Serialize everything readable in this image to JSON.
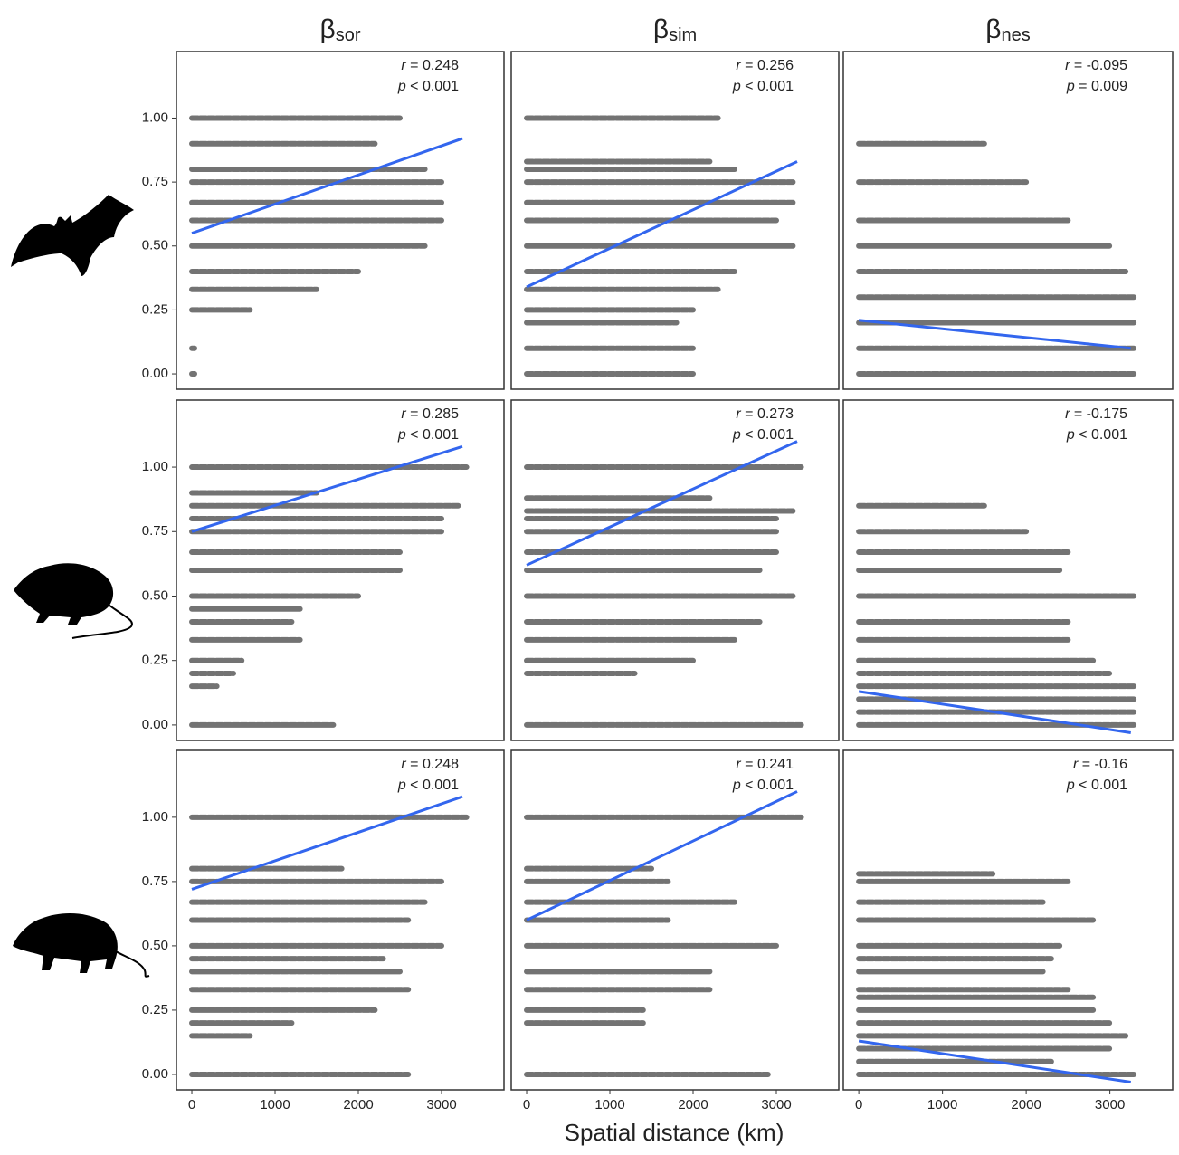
{
  "figure": {
    "column_titles": [
      {
        "symbol": "β",
        "sub": "sor"
      },
      {
        "symbol": "β",
        "sub": "sim"
      },
      {
        "symbol": "β",
        "sub": "nes"
      }
    ],
    "xlabel": "Spatial distance (km)"
  },
  "chart_data": [
    {
      "type": "scatter",
      "stat_r": "r = 0.248",
      "stat_p": "p < 0.001",
      "xlim": [
        -185,
        3750
      ],
      "ylim": [
        -0.06,
        1.26
      ],
      "yticks": [
        {
          "value": 0,
          "label": "0.00"
        },
        {
          "value": 0.25,
          "label": "0.25"
        },
        {
          "value": 0.5,
          "label": "0.50"
        },
        {
          "value": 0.75,
          "label": "0.75"
        },
        {
          "value": 1,
          "label": "1.00"
        }
      ],
      "levels": [
        1,
        0.9,
        0.8,
        0.75,
        0.67,
        0.6,
        0.5,
        0.4,
        0.33,
        0.25,
        0.1,
        0
      ],
      "level_xmax": [
        2500,
        2200,
        2800,
        3000,
        3000,
        3000,
        2800,
        2000,
        1500,
        700,
        0,
        0
      ],
      "fit_x": [
        0,
        3250
      ],
      "fit_y": [
        0.55,
        0.92
      ],
      "color": "#3366ee"
    },
    {
      "type": "scatter",
      "stat_r": "r = 0.256",
      "stat_p": "p < 0.001",
      "xlim": [
        -185,
        3750
      ],
      "ylim": [
        -0.06,
        1.26
      ],
      "levels": [
        1,
        0.83,
        0.8,
        0.75,
        0.67,
        0.6,
        0.5,
        0.4,
        0.33,
        0.25,
        0.2,
        0.1,
        0
      ],
      "level_xmax": [
        2300,
        2200,
        2500,
        3200,
        3200,
        3000,
        3200,
        2500,
        2300,
        2000,
        1800,
        2000,
        2000
      ],
      "fit_x": [
        0,
        3250
      ],
      "fit_y": [
        0.34,
        0.83
      ],
      "color": "#3366ee"
    },
    {
      "type": "scatter",
      "stat_r": "r = -0.095",
      "stat_p": "p = 0.009",
      "xlim": [
        -185,
        3750
      ],
      "ylim": [
        -0.06,
        1.26
      ],
      "levels": [
        0.9,
        0.75,
        0.6,
        0.5,
        0.4,
        0.3,
        0.2,
        0.1,
        0
      ],
      "level_xmax": [
        1500,
        2000,
        2500,
        3000,
        3200,
        3300,
        3300,
        3300,
        3300
      ],
      "fit_x": [
        0,
        3250
      ],
      "fit_y": [
        0.21,
        0.1
      ],
      "color": "#3366ee"
    },
    {
      "type": "scatter",
      "stat_r": "r = 0.285",
      "stat_p": "p < 0.001",
      "xlim": [
        -185,
        3750
      ],
      "ylim": [
        -0.06,
        1.26
      ],
      "yticks": [
        {
          "value": 0,
          "label": "0.00"
        },
        {
          "value": 0.25,
          "label": "0.25"
        },
        {
          "value": 0.5,
          "label": "0.50"
        },
        {
          "value": 0.75,
          "label": "0.75"
        },
        {
          "value": 1,
          "label": "1.00"
        }
      ],
      "levels": [
        1,
        0.9,
        0.85,
        0.8,
        0.75,
        0.67,
        0.6,
        0.5,
        0.45,
        0.4,
        0.33,
        0.25,
        0.2,
        0.15,
        0
      ],
      "level_xmax": [
        3300,
        1500,
        3200,
        3000,
        3000,
        2500,
        2500,
        2000,
        1300,
        1200,
        1300,
        600,
        500,
        300,
        1700
      ],
      "fit_x": [
        0,
        3250
      ],
      "fit_y": [
        0.75,
        1.08
      ],
      "color": "#3366ee"
    },
    {
      "type": "scatter",
      "stat_r": "r = 0.273",
      "stat_p": "p < 0.001",
      "xlim": [
        -185,
        3750
      ],
      "ylim": [
        -0.06,
        1.26
      ],
      "levels": [
        1,
        0.88,
        0.83,
        0.8,
        0.75,
        0.67,
        0.6,
        0.5,
        0.4,
        0.33,
        0.25,
        0.2,
        0
      ],
      "level_xmax": [
        3300,
        2200,
        3200,
        3000,
        3000,
        3000,
        2800,
        3200,
        2800,
        2500,
        2000,
        1300,
        3300
      ],
      "fit_x": [
        0,
        3250
      ],
      "fit_y": [
        0.62,
        1.1
      ],
      "color": "#3366ee"
    },
    {
      "type": "scatter",
      "stat_r": "r = -0.175",
      "stat_p": "p < 0.001",
      "xlim": [
        -185,
        3750
      ],
      "ylim": [
        -0.06,
        1.26
      ],
      "levels": [
        0.85,
        0.75,
        0.67,
        0.6,
        0.5,
        0.4,
        0.33,
        0.25,
        0.2,
        0.15,
        0.1,
        0.05,
        0
      ],
      "level_xmax": [
        1500,
        2000,
        2500,
        2400,
        3300,
        2500,
        2500,
        2800,
        3000,
        3300,
        3300,
        3300,
        3300
      ],
      "fit_x": [
        0,
        3250
      ],
      "fit_y": [
        0.13,
        -0.03
      ],
      "color": "#3366ee"
    },
    {
      "type": "scatter",
      "stat_r": "r = 0.248",
      "stat_p": "p < 0.001",
      "xlim": [
        -185,
        3750
      ],
      "ylim": [
        -0.06,
        1.26
      ],
      "yticks": [
        {
          "value": 0,
          "label": "0.00"
        },
        {
          "value": 0.25,
          "label": "0.25"
        },
        {
          "value": 0.5,
          "label": "0.50"
        },
        {
          "value": 0.75,
          "label": "0.75"
        },
        {
          "value": 1,
          "label": "1.00"
        }
      ],
      "xticks": [
        0,
        1000,
        2000,
        3000
      ],
      "levels": [
        1,
        0.8,
        0.75,
        0.67,
        0.6,
        0.5,
        0.45,
        0.4,
        0.33,
        0.25,
        0.2,
        0.15,
        0
      ],
      "level_xmax": [
        3300,
        1800,
        3000,
        2800,
        2600,
        3000,
        2300,
        2500,
        2600,
        2200,
        1200,
        700,
        2600
      ],
      "fit_x": [
        0,
        3250
      ],
      "fit_y": [
        0.72,
        1.08
      ],
      "color": "#3366ee"
    },
    {
      "type": "scatter",
      "stat_r": "r = 0.241",
      "stat_p": "p < 0.001",
      "xlim": [
        -185,
        3750
      ],
      "ylim": [
        -0.06,
        1.26
      ],
      "xticks": [
        0,
        1000,
        2000,
        3000
      ],
      "levels": [
        1,
        0.8,
        0.75,
        0.67,
        0.6,
        0.5,
        0.4,
        0.33,
        0.25,
        0.2,
        0
      ],
      "level_xmax": [
        3300,
        1500,
        1700,
        2500,
        1700,
        3000,
        2200,
        2200,
        1400,
        1400,
        2900
      ],
      "fit_x": [
        0,
        3250
      ],
      "fit_y": [
        0.6,
        1.1
      ],
      "color": "#3366ee"
    },
    {
      "type": "scatter",
      "stat_r": "r = -0.16",
      "stat_p": "p < 0.001",
      "xlim": [
        -185,
        3750
      ],
      "ylim": [
        -0.06,
        1.26
      ],
      "xticks": [
        0,
        1000,
        2000,
        3000
      ],
      "levels": [
        0.78,
        0.75,
        0.67,
        0.6,
        0.5,
        0.45,
        0.4,
        0.33,
        0.3,
        0.25,
        0.2,
        0.15,
        0.1,
        0.05,
        0
      ],
      "level_xmax": [
        1600,
        2500,
        2200,
        2800,
        2400,
        2300,
        2200,
        2500,
        2800,
        2800,
        3000,
        3200,
        3000,
        2300,
        3300
      ],
      "fit_x": [
        0,
        3250
      ],
      "fit_y": [
        0.13,
        -0.03
      ],
      "color": "#3366ee"
    }
  ]
}
